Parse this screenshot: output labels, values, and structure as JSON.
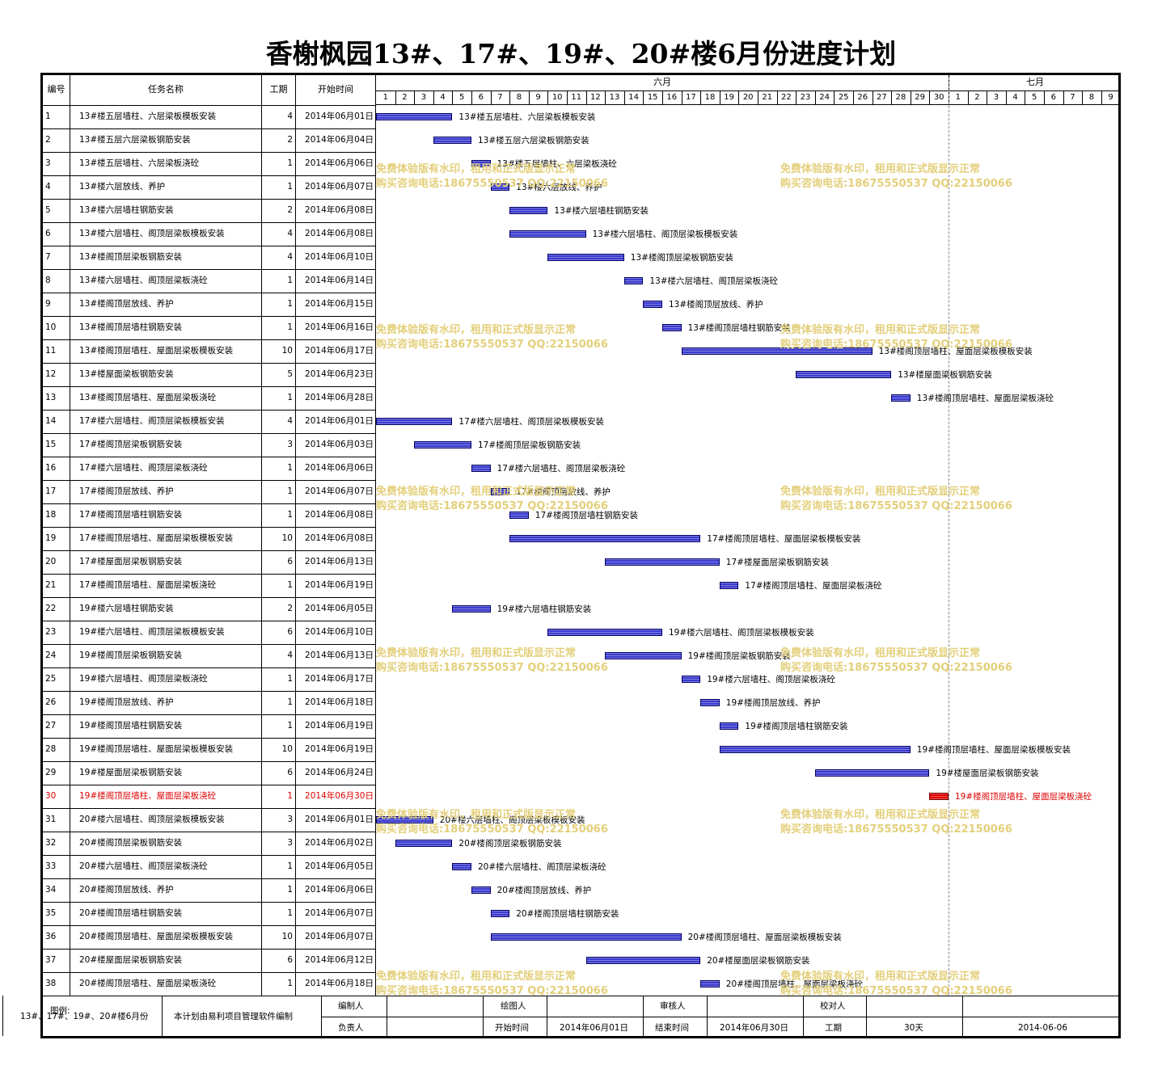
{
  "title": "香榭枫园13#、17#、19#、20#楼6月份进度计划",
  "header": {
    "no": "编号",
    "task": "任务名称",
    "duration": "工期",
    "start": "开始时间",
    "month1": "六月",
    "month2": "七月",
    "days_june": [
      "1",
      "2",
      "3",
      "4",
      "5",
      "6",
      "7",
      "8",
      "9",
      "10",
      "11",
      "12",
      "13",
      "14",
      "15",
      "16",
      "17",
      "18",
      "19",
      "20",
      "21",
      "22",
      "23",
      "24",
      "25",
      "26",
      "27",
      "28",
      "29",
      "30"
    ],
    "days_july": [
      "1",
      "2",
      "3",
      "4",
      "5",
      "6",
      "7",
      "8",
      "9"
    ]
  },
  "colors": {
    "bar": "#3b3bd0",
    "critical": "#e00000",
    "watermark": "#e3cf7a"
  },
  "tasks": [
    {
      "no": "1",
      "name": "13#楼五层墙柱、六层梁板模板安装",
      "dur": "4",
      "start": "2014年06月01日",
      "s": 1
    },
    {
      "no": "2",
      "name": "13#楼五层六层梁板钢筋安装",
      "dur": "2",
      "start": "2014年06月04日",
      "s": 4
    },
    {
      "no": "3",
      "name": "13#楼五层墙柱、六层梁板浇砼",
      "dur": "1",
      "start": "2014年06月06日",
      "s": 6
    },
    {
      "no": "4",
      "name": "13#楼六层放线、养护",
      "dur": "1",
      "start": "2014年06月07日",
      "s": 7
    },
    {
      "no": "5",
      "name": "13#楼六层墙柱钢筋安装",
      "dur": "2",
      "start": "2014年06月08日",
      "s": 8
    },
    {
      "no": "6",
      "name": "13#楼六层墙柱、阁顶层梁板模板安装",
      "dur": "4",
      "start": "2014年06月08日",
      "s": 8
    },
    {
      "no": "7",
      "name": "13#楼阁顶层梁板钢筋安装",
      "dur": "4",
      "start": "2014年06月10日",
      "s": 10
    },
    {
      "no": "8",
      "name": "13#楼六层墙柱、阁顶层梁板浇砼",
      "dur": "1",
      "start": "2014年06月14日",
      "s": 14
    },
    {
      "no": "9",
      "name": "13#楼阁顶层放线、养护",
      "dur": "1",
      "start": "2014年06月15日",
      "s": 15
    },
    {
      "no": "10",
      "name": "13#楼阁顶层墙柱钢筋安装",
      "dur": "1",
      "start": "2014年06月16日",
      "s": 16
    },
    {
      "no": "11",
      "name": "13#楼阁顶层墙柱、屋面层梁板模板安装",
      "dur": "10",
      "start": "2014年06月17日",
      "s": 17
    },
    {
      "no": "12",
      "name": "13#楼屋面梁板钢筋安装",
      "dur": "5",
      "start": "2014年06月23日",
      "s": 23
    },
    {
      "no": "13",
      "name": "13#楼阁顶层墙柱、屋面层梁板浇砼",
      "dur": "1",
      "start": "2014年06月28日",
      "s": 28
    },
    {
      "no": "14",
      "name": "17#楼六层墙柱、阁顶层梁板模板安装",
      "dur": "4",
      "start": "2014年06月01日",
      "s": 1
    },
    {
      "no": "15",
      "name": "17#楼阁顶层梁板钢筋安装",
      "dur": "3",
      "start": "2014年06月03日",
      "s": 3
    },
    {
      "no": "16",
      "name": "17#楼六层墙柱、阁顶层梁板浇砼",
      "dur": "1",
      "start": "2014年06月06日",
      "s": 6
    },
    {
      "no": "17",
      "name": "17#楼阁顶层放线、养护",
      "dur": "1",
      "start": "2014年06月07日",
      "s": 7
    },
    {
      "no": "18",
      "name": "17#楼阁顶层墙柱钢筋安装",
      "dur": "1",
      "start": "2014年06月08日",
      "s": 8
    },
    {
      "no": "19",
      "name": "17#楼阁顶层墙柱、屋面层梁板模板安装",
      "dur": "10",
      "start": "2014年06月08日",
      "s": 8
    },
    {
      "no": "20",
      "name": "17#楼屋面层梁板钢筋安装",
      "dur": "6",
      "start": "2014年06月13日",
      "s": 13
    },
    {
      "no": "21",
      "name": "17#楼阁顶层墙柱、屋面层梁板浇砼",
      "dur": "1",
      "start": "2014年06月19日",
      "s": 19
    },
    {
      "no": "22",
      "name": "19#楼六层墙柱钢筋安装",
      "dur": "2",
      "start": "2014年06月05日",
      "s": 5
    },
    {
      "no": "23",
      "name": "19#楼六层墙柱、阁顶层梁板模板安装",
      "dur": "6",
      "start": "2014年06月10日",
      "s": 10
    },
    {
      "no": "24",
      "name": "19#楼阁顶层梁板钢筋安装",
      "dur": "4",
      "start": "2014年06月13日",
      "s": 13
    },
    {
      "no": "25",
      "name": "19#楼六层墙柱、阁顶层梁板浇砼",
      "dur": "1",
      "start": "2014年06月17日",
      "s": 17
    },
    {
      "no": "26",
      "name": "19#楼阁顶层放线、养护",
      "dur": "1",
      "start": "2014年06月18日",
      "s": 18
    },
    {
      "no": "27",
      "name": "19#楼阁顶层墙柱钢筋安装",
      "dur": "1",
      "start": "2014年06月19日",
      "s": 19
    },
    {
      "no": "28",
      "name": "19#楼阁顶层墙柱、屋面层梁板模板安装",
      "dur": "10",
      "start": "2014年06月19日",
      "s": 19
    },
    {
      "no": "29",
      "name": "19#楼屋面层梁板钢筋安装",
      "dur": "6",
      "start": "2014年06月24日",
      "s": 24
    },
    {
      "no": "30",
      "name": "19#楼阁顶层墙柱、屋面层梁板浇砼",
      "dur": "1",
      "start": "2014年06月30日",
      "s": 30,
      "critical": true
    },
    {
      "no": "31",
      "name": "20#楼六层墙柱、阁顶层梁板模板安装",
      "dur": "3",
      "start": "2014年06月01日",
      "s": 1
    },
    {
      "no": "32",
      "name": "20#楼阁顶层梁板钢筋安装",
      "dur": "3",
      "start": "2014年06月02日",
      "s": 2
    },
    {
      "no": "33",
      "name": "20#楼六层墙柱、阁顶层梁板浇砼",
      "dur": "1",
      "start": "2014年06月05日",
      "s": 5
    },
    {
      "no": "34",
      "name": "20#楼阁顶层放线、养护",
      "dur": "1",
      "start": "2014年06月06日",
      "s": 6
    },
    {
      "no": "35",
      "name": "20#楼阁顶层墙柱钢筋安装",
      "dur": "1",
      "start": "2014年06月07日",
      "s": 7
    },
    {
      "no": "36",
      "name": "20#楼阁顶层墙柱、屋面层梁板模板安装",
      "dur": "10",
      "start": "2014年06月07日",
      "s": 7
    },
    {
      "no": "37",
      "name": "20#楼屋面层梁板钢筋安装",
      "dur": "6",
      "start": "2014年06月12日",
      "s": 12
    },
    {
      "no": "38",
      "name": "20#楼阁顶层墙柱、屋面层梁板浇砼",
      "dur": "1",
      "start": "2014年06月18日",
      "s": 18
    }
  ],
  "watermark": {
    "line1": "免费体验版有水印，租用和正式版显示正常",
    "line2": "购买咨询电话:18675550537 QQ:22150066"
  },
  "footer": {
    "legend_label": "图例:",
    "project_name": "13#、17#、19#、20#楼6月份",
    "software_note": "本计划由易利项目管理软件编制",
    "compiler_label": "编制人",
    "drafter_label": "绘图人",
    "reviewer_label": "审核人",
    "checker_label": "校对人",
    "owner_label": "负责人",
    "start_label": "开始时间",
    "start_value": "2014年06月01日",
    "end_label": "结束时间",
    "end_value": "2014年06月30日",
    "duration_label": "工期",
    "duration_value": "30天",
    "date_value": "2014-06-06"
  }
}
